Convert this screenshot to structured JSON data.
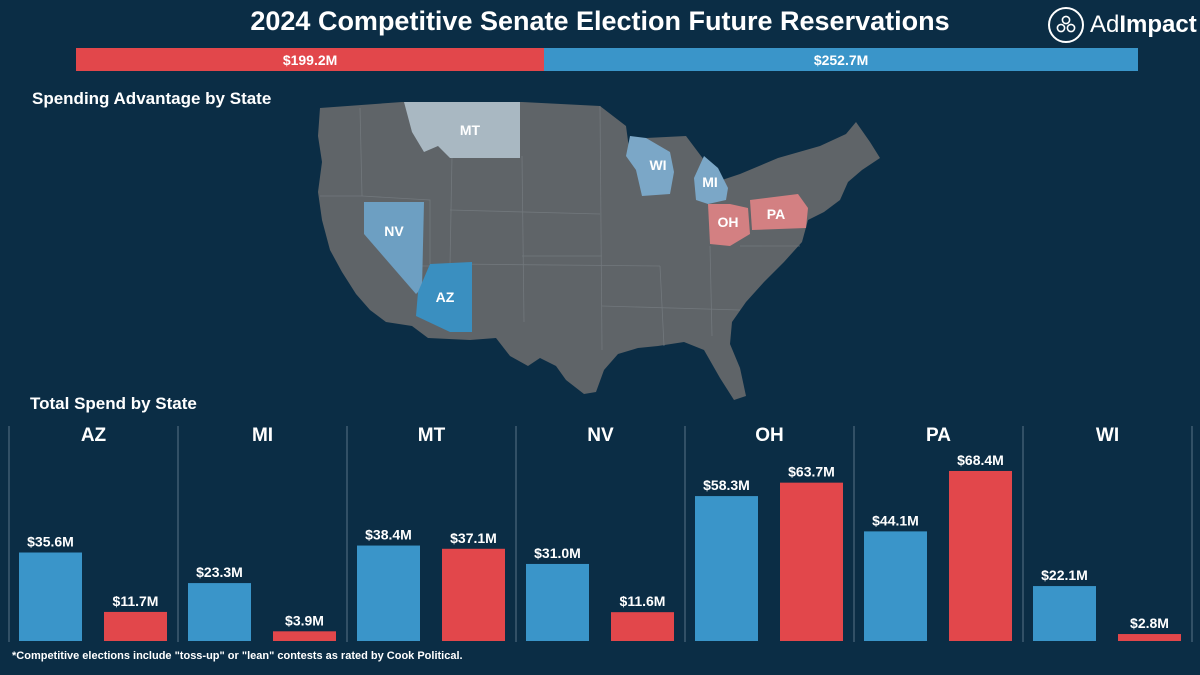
{
  "title": "2024 Competitive Senate Election Future Reservations",
  "logo": {
    "text_light": "Ad",
    "text_bold": "Impact"
  },
  "colors": {
    "background": "#0b2d45",
    "republican": "#e2474b",
    "democrat": "#3a95c9",
    "map_base": "#5f6468"
  },
  "totals": {
    "republican_label": "$199.2M",
    "republican_value": 199.2,
    "democrat_label": "$252.7M",
    "democrat_value": 252.7
  },
  "map_section_label": "Spending Advantage by State",
  "map_states": [
    "MT",
    "WI",
    "MI",
    "NV",
    "OH",
    "PA",
    "AZ"
  ],
  "bars_section_label": "Total Spend by State",
  "footnote": "*Competitive elections include \"toss-up\" or \"lean\" contests as rated by Cook Political.",
  "chart_data": {
    "type": "bar",
    "categories": [
      "AZ",
      "MI",
      "MT",
      "NV",
      "OH",
      "PA",
      "WI"
    ],
    "series": [
      {
        "color": "#3a95c9",
        "values": [
          35.6,
          23.3,
          38.4,
          31.0,
          58.3,
          44.1,
          22.1
        ],
        "labels": [
          "$35.6M",
          "$23.3M",
          "$38.4M",
          "$31.0M",
          "$58.3M",
          "$44.1M",
          "$22.1M"
        ]
      },
      {
        "color": "#e2474b",
        "values": [
          11.7,
          3.9,
          37.1,
          11.6,
          63.7,
          68.4,
          2.8
        ],
        "labels": [
          "$11.7M",
          "$3.9M",
          "$37.1M",
          "$11.6M",
          "$63.7M",
          "$68.4M",
          "$2.8M"
        ]
      }
    ],
    "title": "Total Spend by State",
    "ylim": [
      0,
      70
    ]
  }
}
